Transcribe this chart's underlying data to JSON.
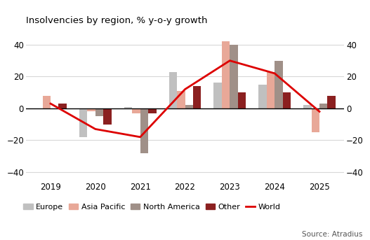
{
  "title": "Insolvencies by region, % y-o-y growth",
  "years": [
    2019,
    2020,
    2021,
    2022,
    2023,
    2024,
    2025
  ],
  "europe": [
    0,
    -18,
    1,
    23,
    16,
    15,
    2
  ],
  "asia_pacific": [
    8,
    -2,
    -3,
    11,
    42,
    23,
    -15
  ],
  "north_america": [
    0,
    -5,
    -28,
    2,
    40,
    30,
    3
  ],
  "other": [
    3,
    -10,
    -3,
    14,
    10,
    10,
    8
  ],
  "world": [
    3,
    -13,
    -18,
    12,
    30,
    22,
    -2
  ],
  "bar_width": 0.18,
  "color_europe": "#c0c0c0",
  "color_asia_pacific": "#e8a898",
  "color_north_america": "#a09088",
  "color_other": "#8b2020",
  "color_world": "#dd0000",
  "ylim": [
    -45,
    50
  ],
  "yticks": [
    -40,
    -20,
    0,
    20,
    40
  ],
  "source": "Source: Atradius",
  "bg_color": "#ffffff",
  "legend_labels": [
    "Europe",
    "Asia Pacific",
    "North America",
    "Other",
    "World"
  ]
}
